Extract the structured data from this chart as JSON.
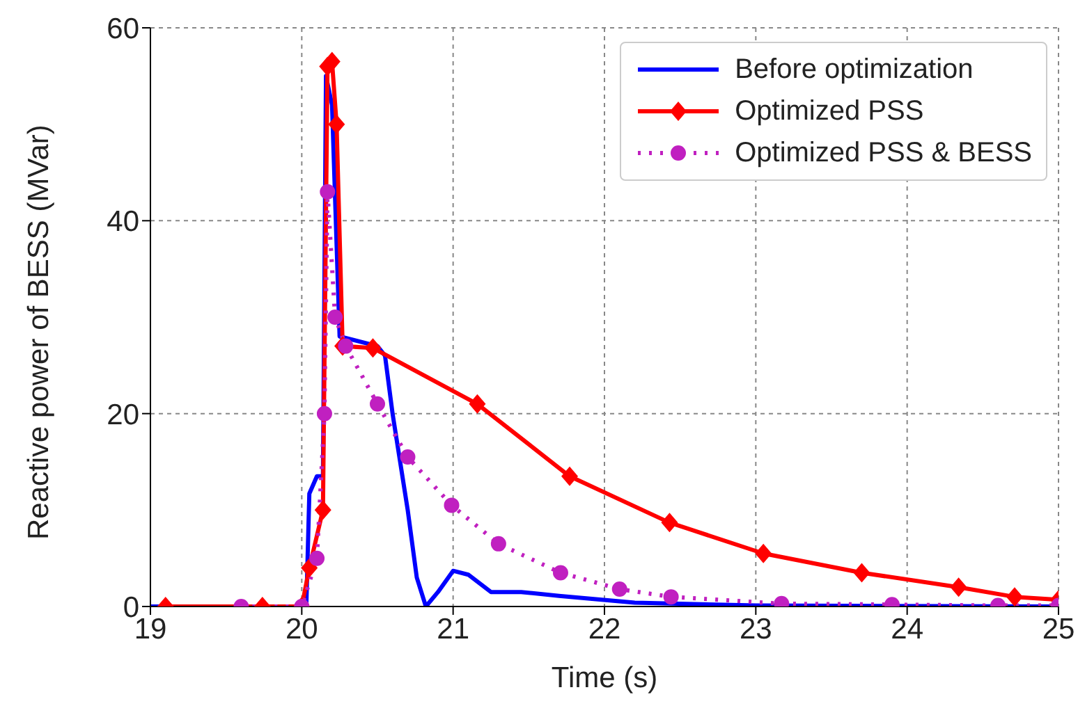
{
  "chart_data": {
    "type": "line",
    "xlabel": "Time (s)",
    "ylabel": "Reactive power of BESS (MVar)",
    "xlim": [
      19,
      25
    ],
    "xticks": [
      19,
      20,
      21,
      22,
      23,
      24,
      25
    ],
    "ylim": [
      0,
      60
    ],
    "yticks": [
      0,
      20,
      40,
      60
    ],
    "grid": true,
    "legend": "top right",
    "series": [
      {
        "name": "Before optimization",
        "color": "#0000ff",
        "marker": "none",
        "line_style": "solid",
        "x": [
          19,
          20.03,
          20.05,
          20.1,
          20.14,
          20.16,
          20.2,
          20.25,
          20.5,
          20.55,
          20.6,
          20.65,
          20.7,
          20.76,
          20.82,
          20.9,
          21.0,
          21.1,
          21.25,
          21.45,
          21.7,
          22.2,
          23,
          25
        ],
        "values": [
          0,
          0,
          11.7,
          13.5,
          13.5,
          55,
          52,
          28,
          27,
          26,
          20,
          15,
          10,
          3,
          0,
          1.5,
          3.7,
          3.3,
          1.5,
          1.5,
          1.1,
          0.4,
          0.1,
          0
        ]
      },
      {
        "name": "Optimized PSS",
        "color": "#ff0000",
        "marker": "diamond",
        "line_style": "solid",
        "x": [
          19.1,
          19.74,
          20.0,
          20.05,
          20.14,
          20.17,
          20.2,
          20.23,
          20.27,
          20.47,
          21.16,
          21.77,
          22.43,
          23.05,
          23.7,
          24.34,
          24.71,
          25
        ],
        "values": [
          0,
          0,
          0,
          4,
          10,
          56,
          56.5,
          50,
          27,
          26.8,
          21,
          13.5,
          8.7,
          5.5,
          3.5,
          2,
          1,
          0.7
        ]
      },
      {
        "name": "Optimized PSS & BESS",
        "color": "#c020c0",
        "marker": "circle",
        "line_style": "dotted",
        "x": [
          19.6,
          20.0,
          20.1,
          20.15,
          20.17,
          20.22,
          20.29,
          20.5,
          20.7,
          20.99,
          21.3,
          21.71,
          22.1,
          22.44,
          23.17,
          23.9,
          24.6,
          25
        ],
        "values": [
          0,
          0,
          5,
          20,
          43,
          30,
          27,
          21,
          15.5,
          10.5,
          6.5,
          3.5,
          1.8,
          1,
          0.3,
          0.2,
          0.1,
          0.1
        ]
      }
    ]
  }
}
